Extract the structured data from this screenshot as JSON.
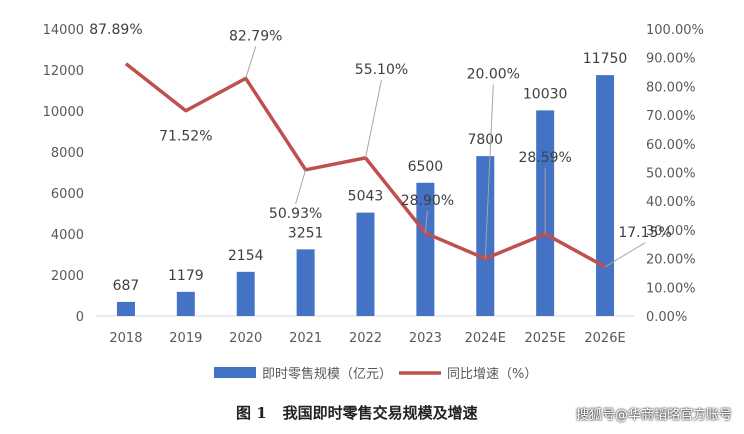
{
  "chart_data": {
    "type": "bar",
    "categories": [
      "2018",
      "2019",
      "2020",
      "2021",
      "2022",
      "2023",
      "2024E",
      "2025E",
      "2026E"
    ],
    "series": [
      {
        "name": "即时零售规模（亿元）",
        "type": "bar",
        "axis": "left",
        "values": [
          687,
          1179,
          2154,
          3251,
          5043,
          6500,
          7800,
          10030,
          11750
        ],
        "labels": [
          "687",
          "1179",
          "2154",
          "3251",
          "5043",
          "6500",
          "7800",
          "10030",
          "11750"
        ],
        "color": "#4472C4"
      },
      {
        "name": "同比增速（%）",
        "type": "line",
        "axis": "right",
        "values": [
          87.89,
          71.52,
          82.79,
          50.93,
          55.1,
          28.9,
          20.0,
          28.59,
          17.15
        ],
        "labels": [
          "87.89%",
          "71.52%",
          "82.79%",
          "50.93%",
          "55.10%",
          "28.90%",
          "20.00%",
          "28.59%",
          "17.15%"
        ],
        "color": "#C0504D"
      }
    ],
    "left_axis": {
      "ylim": [
        0,
        14000
      ],
      "ticks": [
        "0",
        "2000",
        "4000",
        "6000",
        "8000",
        "10000",
        "12000",
        "14000"
      ]
    },
    "right_axis": {
      "ylim": [
        0,
        100
      ],
      "ticks": [
        "0.00%",
        "10.00%",
        "20.00%",
        "30.00%",
        "40.00%",
        "50.00%",
        "60.00%",
        "70.00%",
        "80.00%",
        "90.00%",
        "100.00%"
      ]
    },
    "grid": false,
    "legend_position": "bottom"
  },
  "caption": {
    "figure_number": "图 1",
    "text": "我国即时零售交易规模及增速"
  },
  "watermark": "搜狐号@华商韬略官方账号"
}
